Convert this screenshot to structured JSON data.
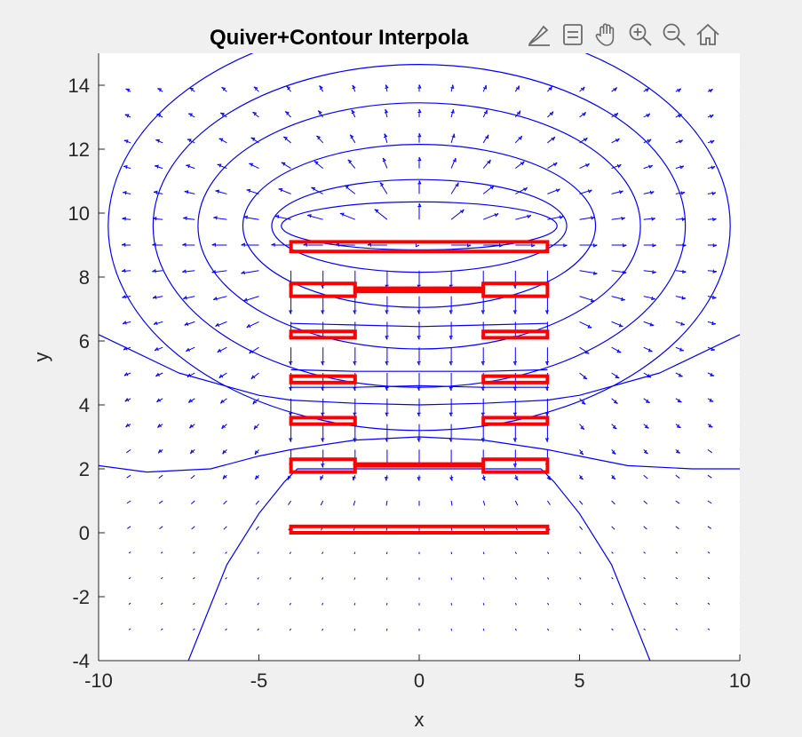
{
  "toolbar": {
    "icons": [
      "brush-icon",
      "data-tips-icon",
      "pan-hand-icon",
      "zoom-in-icon",
      "zoom-out-icon",
      "home-icon"
    ]
  },
  "colors": {
    "background": "#f0f0f0",
    "axes_bg": "#ffffff",
    "contour": "#0000ff",
    "quiver": "#0000ff",
    "geometry": "#ff0000",
    "axis": "#262626"
  },
  "chart_data": {
    "type": "quiver+contour",
    "title": "Quiver+Contour Interpola",
    "xlabel": "x",
    "ylabel": "y",
    "xlim": [
      -10,
      10
    ],
    "ylim": [
      -4,
      15
    ],
    "xticks": [
      -10,
      -5,
      0,
      5,
      10
    ],
    "yticks": [
      -4,
      -2,
      0,
      2,
      4,
      6,
      8,
      10,
      12,
      14
    ],
    "xtick_labels": [
      "-10",
      "-5",
      "0",
      "5",
      "10"
    ],
    "ytick_labels": [
      "-4",
      "-2",
      "0",
      "2",
      "4",
      "6",
      "8",
      "10",
      "12",
      "14"
    ],
    "grid": false,
    "geometry_rectangles": [
      {
        "x": [
          -4,
          4
        ],
        "y": [
          0,
          0.2
        ]
      },
      {
        "x": [
          -4,
          -2
        ],
        "y": [
          1.9,
          2.3
        ]
      },
      {
        "x": [
          2,
          4
        ],
        "y": [
          1.9,
          2.3
        ]
      },
      {
        "x": [
          -2,
          2
        ],
        "y": [
          2.1,
          2.15
        ]
      },
      {
        "x": [
          -4,
          -2
        ],
        "y": [
          3.4,
          3.6
        ]
      },
      {
        "x": [
          2,
          4
        ],
        "y": [
          3.4,
          3.6
        ]
      },
      {
        "x": [
          -4,
          -2
        ],
        "y": [
          4.7,
          4.9
        ]
      },
      {
        "x": [
          2,
          4
        ],
        "y": [
          4.7,
          4.9
        ]
      },
      {
        "x": [
          -4,
          -2
        ],
        "y": [
          6.1,
          6.3
        ]
      },
      {
        "x": [
          2,
          4
        ],
        "y": [
          6.1,
          6.3
        ]
      },
      {
        "x": [
          -4,
          -2
        ],
        "y": [
          7.4,
          7.8
        ]
      },
      {
        "x": [
          2,
          4
        ],
        "y": [
          7.4,
          7.8
        ]
      },
      {
        "x": [
          -2,
          2
        ],
        "y": [
          7.55,
          7.65
        ]
      },
      {
        "x": [
          -4,
          4
        ],
        "y": [
          8.8,
          9.1
        ]
      }
    ],
    "contour_lines": [
      {
        "x": [
          -10,
          -8.5,
          -6.5,
          -5,
          -4,
          -2,
          0,
          2,
          4,
          5,
          6.5,
          8.5,
          10
        ],
        "y": [
          2.1,
          1.9,
          2.0,
          2.4,
          2.6,
          2.9,
          3.0,
          2.9,
          2.6,
          2.4,
          2.1,
          2.0,
          2.0
        ]
      },
      {
        "x": [
          -7.2,
          -6.8,
          -6.0,
          -5.0,
          -4.2,
          -3.8,
          3.8,
          4.2,
          5.0,
          6.0,
          6.8,
          7.2
        ],
        "y": [
          -4.0,
          -3.0,
          -1.0,
          0.6,
          1.6,
          2.0,
          2.0,
          1.6,
          0.6,
          -1.0,
          -3.0,
          -4.0
        ]
      },
      {
        "x": [
          -10,
          -7.5,
          -5,
          -4,
          -2,
          0,
          2,
          4,
          5,
          7.5,
          10
        ],
        "y": [
          6.2,
          5.0,
          4.3,
          4.15,
          4.05,
          4.0,
          4.05,
          4.15,
          4.3,
          5.0,
          6.2
        ]
      },
      {
        "x": [
          -4,
          -2,
          0,
          2,
          4
        ],
        "y": [
          5.1,
          5.05,
          5.05,
          5.05,
          5.1
        ]
      },
      {
        "x": [
          -4,
          -2,
          0,
          2,
          4
        ],
        "y": [
          6.55,
          6.5,
          6.45,
          6.5,
          6.55
        ]
      },
      {
        "x": [
          -4,
          -2,
          0,
          2,
          4
        ],
        "y": [
          4.55,
          4.55,
          4.6,
          4.55,
          4.55
        ]
      }
    ],
    "contour_levels_closed": [
      {
        "cx": 0,
        "cy": 9.6,
        "rx": 4.3,
        "ry": 0.75
      },
      {
        "cx": 0,
        "cy": 9.6,
        "rx": 4.6,
        "ry": 1.45
      },
      {
        "cx": 0,
        "cy": 9.6,
        "rx": 5.5,
        "ry": 2.55
      },
      {
        "cx": 0,
        "cy": 9.6,
        "rx": 6.9,
        "ry": 3.85
      },
      {
        "cx": 0,
        "cy": 9.6,
        "rx": 8.3,
        "ry": 5.05
      },
      {
        "cx": 0,
        "cy": 9.6,
        "rx": 9.7,
        "ry": 6.4
      }
    ],
    "quiver": {
      "x_range": [
        -9,
        10
      ],
      "x_step": 1,
      "y_range": [
        -3,
        14.5
      ],
      "y_step": 0.8,
      "note_dir": "arrows point toward the central conductor stack; largest near y≈8-9"
    }
  }
}
